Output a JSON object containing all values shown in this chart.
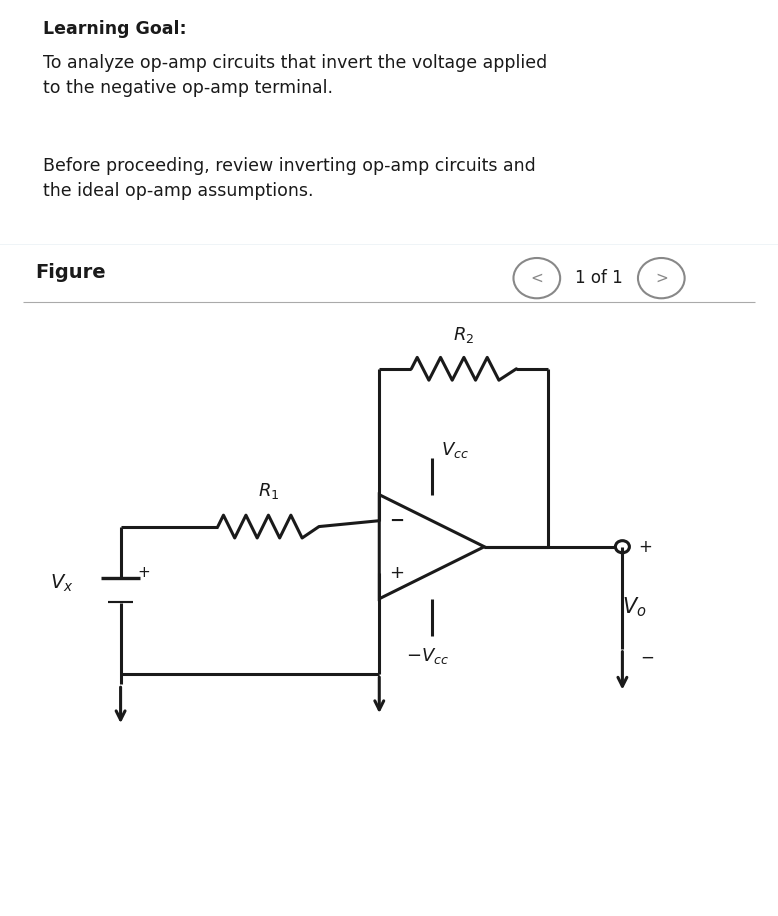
{
  "bg_top_color": "#dce8f0",
  "title_text": "Learning Goal:",
  "body_text1": "To analyze op-amp circuits that invert the voltage applied\nto the negative op-amp terminal.",
  "body_text2": "Before proceeding, review inverting op-amp circuits and\nthe ideal op-amp assumptions.",
  "figure_label": "Figure",
  "page_label": "1 of 1",
  "line_color": "#1a1a1a",
  "text_color": "#1a1a1a",
  "nav_color": "#888888"
}
